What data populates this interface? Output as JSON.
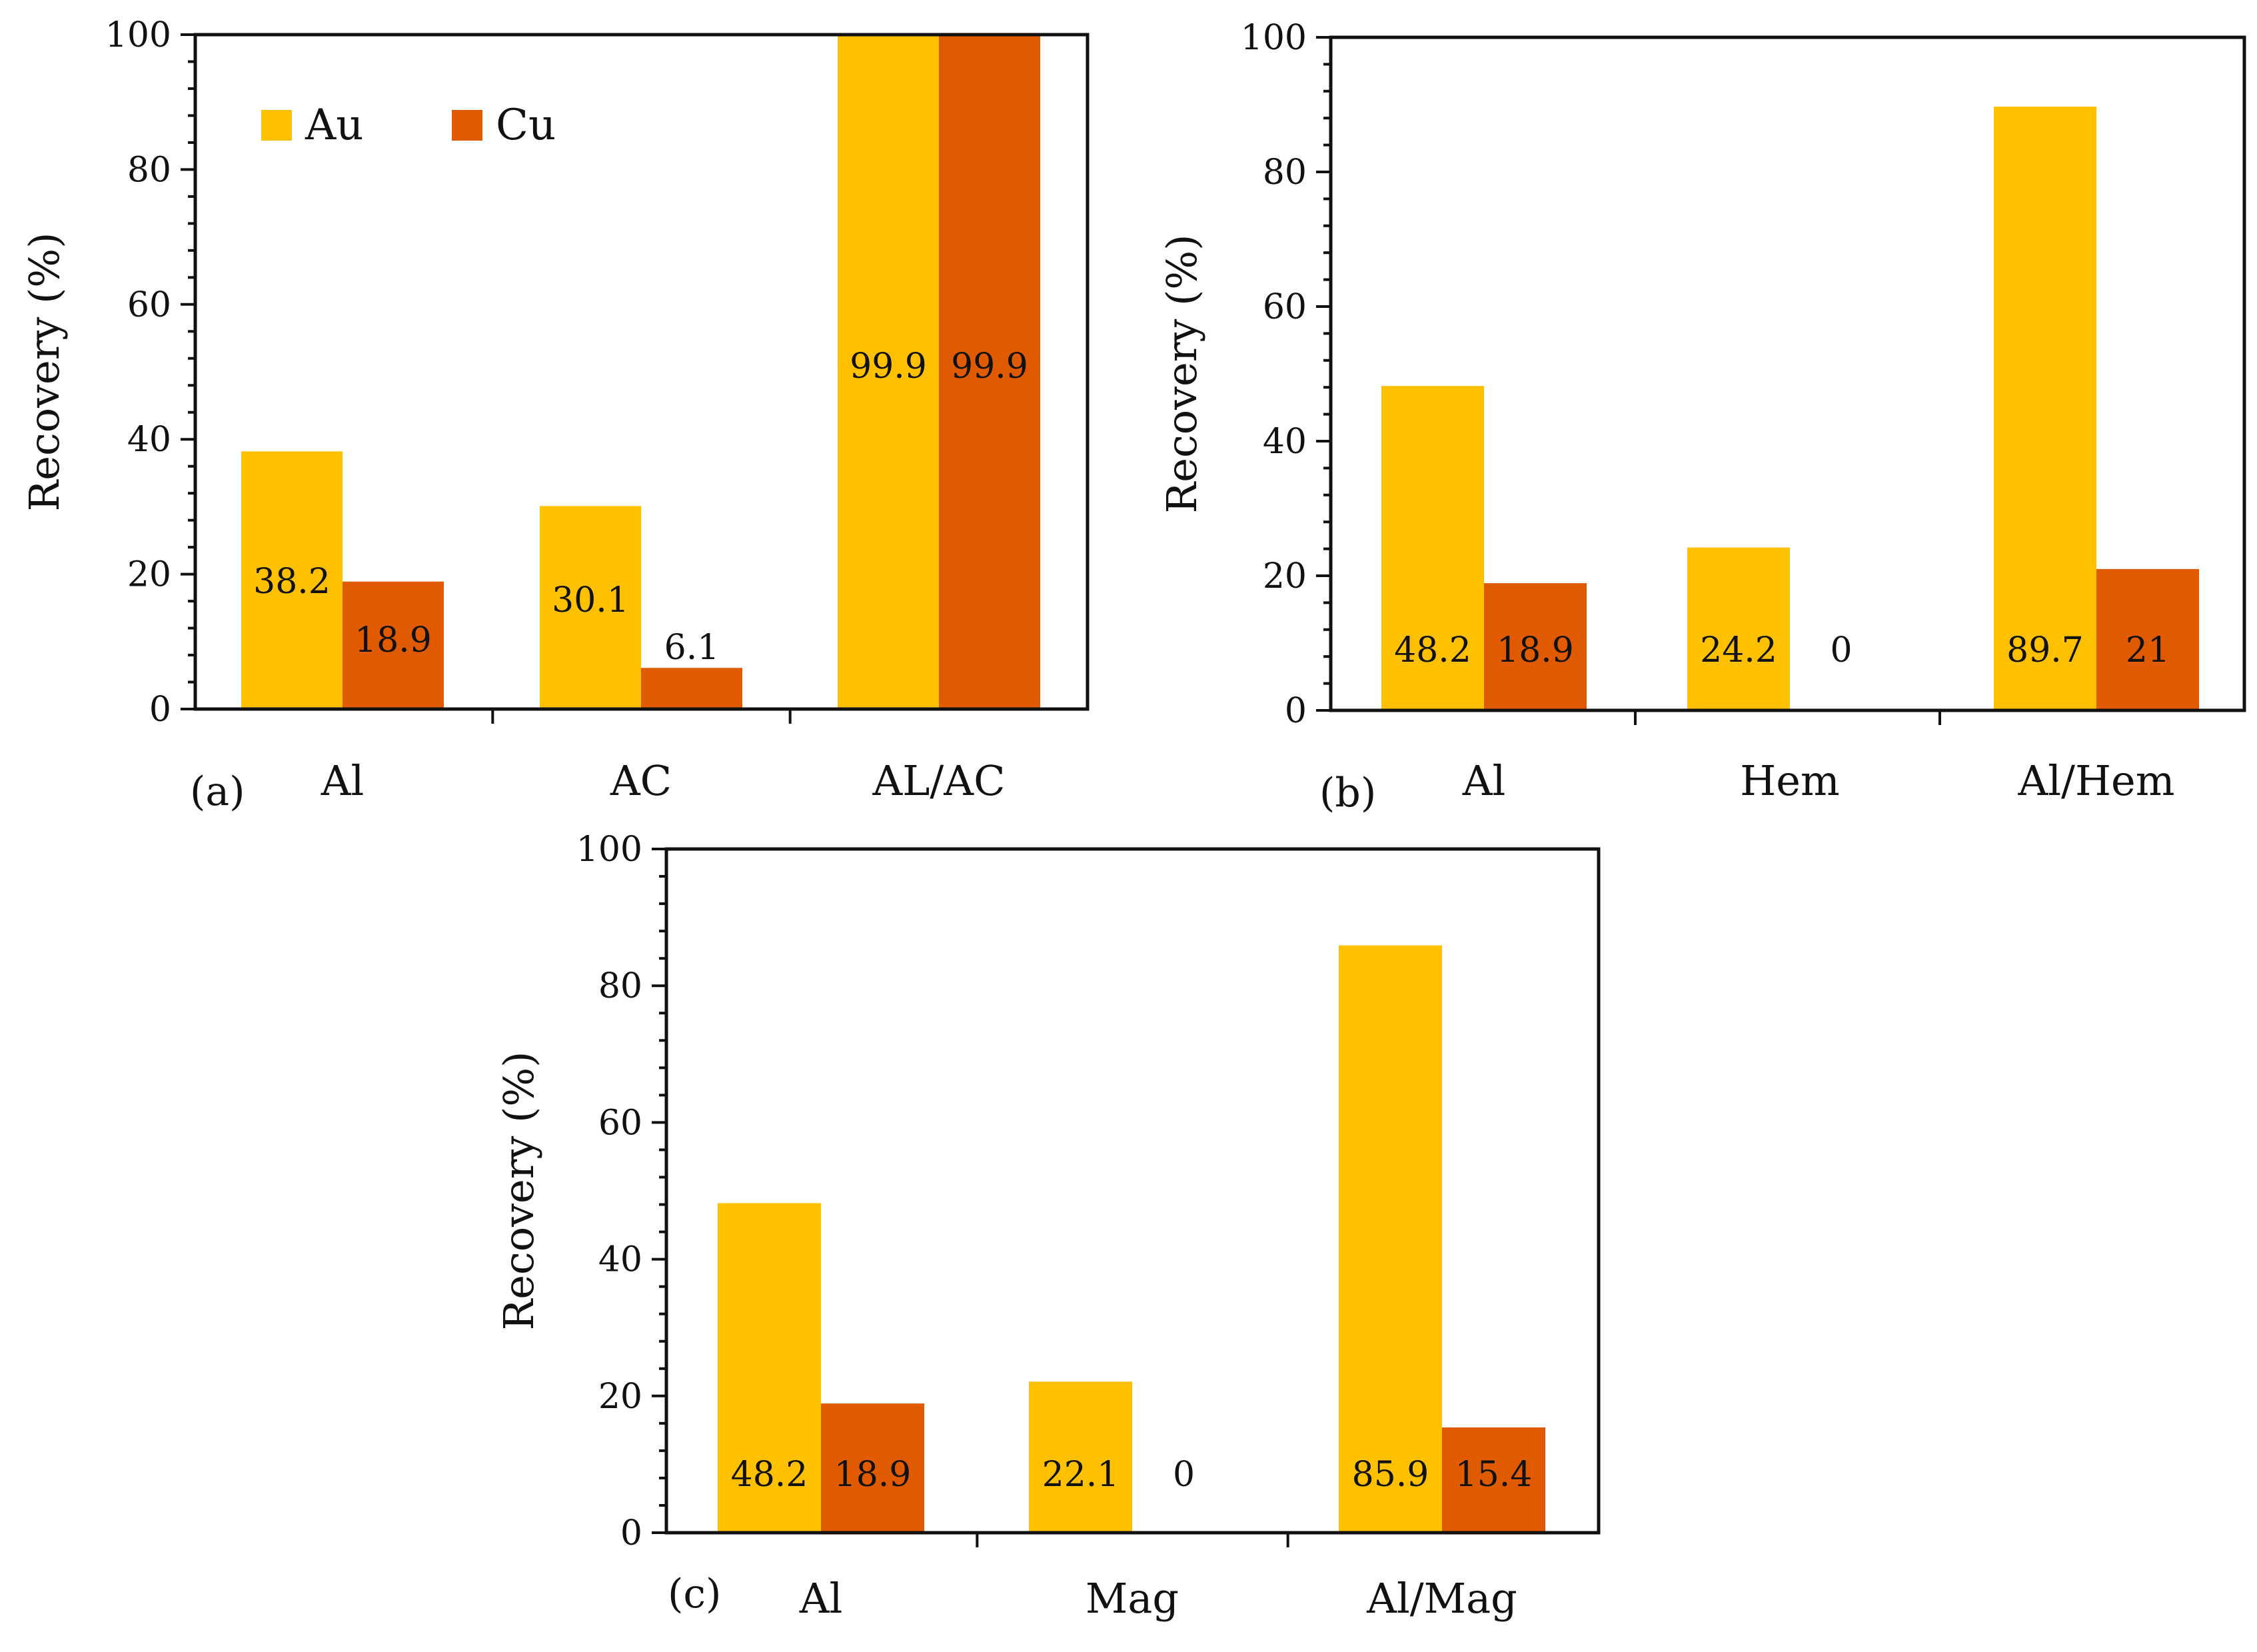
{
  "figure": {
    "legend": [
      {
        "name": "Au",
        "color": "#FFC000"
      },
      {
        "name": "Cu",
        "color": "#E05A00"
      }
    ]
  },
  "chart_data": [
    {
      "type": "bar",
      "panel": "(a)",
      "categories": [
        "Al",
        "AC",
        "AL/AC"
      ],
      "series": [
        {
          "name": "Au",
          "values": [
            38.2,
            30.1,
            99.9
          ],
          "labels": [
            "38.2",
            "30.1",
            "99.9"
          ]
        },
        {
          "name": "Cu",
          "values": [
            18.9,
            6.1,
            99.9
          ],
          "labels": [
            "18.9",
            "6.1",
            "99.9"
          ]
        }
      ],
      "ylabel": "Recovery (%)",
      "xlabel": "",
      "ylim": [
        0,
        100
      ],
      "yticks": [
        "0",
        "20",
        "40",
        "60",
        "80",
        "100"
      ],
      "legend_position": "top-left"
    },
    {
      "type": "bar",
      "panel": "(b)",
      "categories": [
        "Al",
        "Hem",
        "Al/Hem"
      ],
      "series": [
        {
          "name": "Au",
          "values": [
            48.2,
            24.2,
            89.7
          ],
          "labels": [
            "48.2",
            "24.2",
            "89.7"
          ]
        },
        {
          "name": "Cu",
          "values": [
            18.9,
            0,
            21
          ],
          "labels": [
            "18.9",
            "0",
            "21"
          ]
        }
      ],
      "ylabel": "Recovery (%)",
      "xlabel": "",
      "ylim": [
        0,
        100
      ],
      "yticks": [
        "0",
        "20",
        "40",
        "60",
        "80",
        "100"
      ]
    },
    {
      "type": "bar",
      "panel": "(c)",
      "categories": [
        "Al",
        "Mag",
        "Al/Mag"
      ],
      "series": [
        {
          "name": "Au",
          "values": [
            48.2,
            22.1,
            85.9
          ],
          "labels": [
            "48.2",
            "22.1",
            "85.9"
          ]
        },
        {
          "name": "Cu",
          "values": [
            18.9,
            0,
            15.4
          ],
          "labels": [
            "18.9",
            "0",
            "15.4"
          ]
        }
      ],
      "ylabel": "Recovery (%)",
      "xlabel": "",
      "ylim": [
        0,
        100
      ],
      "yticks": [
        "0",
        "20",
        "40",
        "60",
        "80",
        "100"
      ]
    }
  ]
}
